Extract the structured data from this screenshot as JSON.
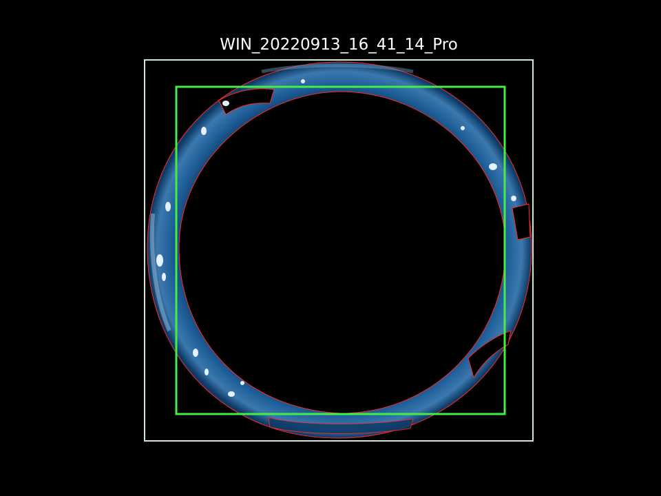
{
  "figure": {
    "title": "WIN_20220913_16_41_14_Pro"
  },
  "colors": {
    "background": "#000000",
    "title_text": "#ffffff",
    "outer_frame": "#cfe8d8",
    "inner_box": "#44ee44",
    "ring_outline": "#ff2a2a",
    "ring_fill_dark": "#0d3a66",
    "ring_fill_mid": "#1f5f99",
    "ring_fill_light": "#6f9fc4",
    "highlight": "#e6f2ff"
  },
  "icons": {
    "image": "segmented-ring-photo"
  }
}
